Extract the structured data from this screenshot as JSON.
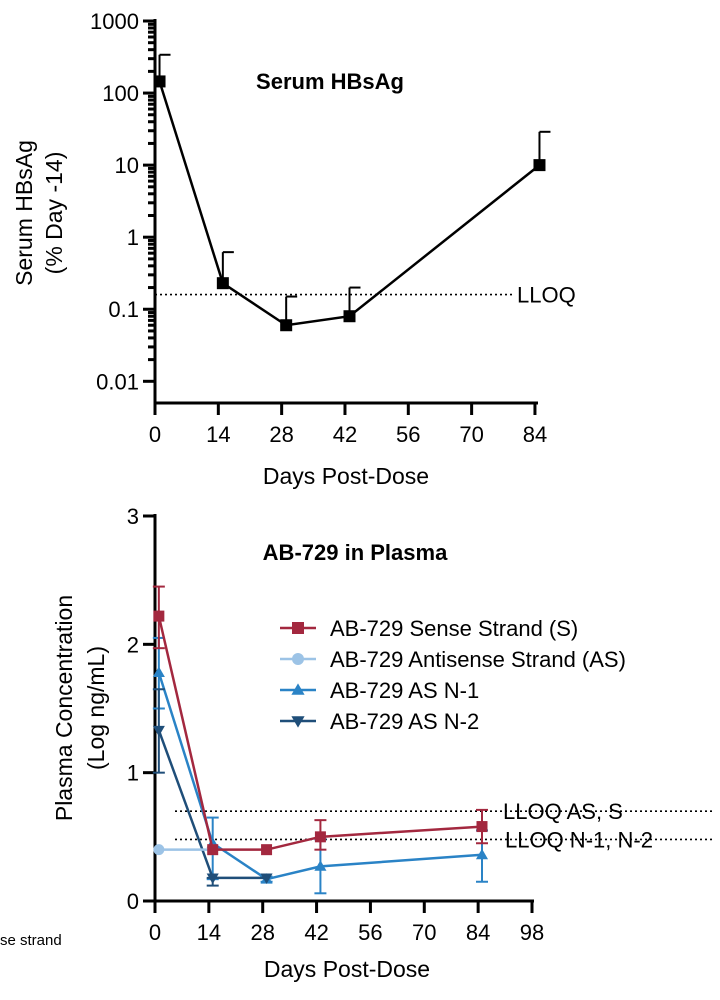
{
  "chart_data": [
    {
      "type": "line",
      "title": "Serum HBsAg",
      "xlabel": "Days Post-Dose",
      "ylabel_line1": "Serum HBsAg",
      "ylabel_line2": "(% Day -14)",
      "yscale": "log",
      "xlim": [
        0,
        86
      ],
      "ylim": [
        0.005,
        1000
      ],
      "xticks": [
        0,
        14,
        28,
        42,
        56,
        70,
        84
      ],
      "yticks": [
        0.01,
        0.1,
        1,
        10,
        100,
        1000
      ],
      "ytick_labels": [
        "0.01",
        "0.1",
        "1",
        "10",
        "100",
        "1000"
      ],
      "reference_lines": [
        {
          "label": "LLOQ",
          "y": 0.16
        }
      ],
      "series": [
        {
          "name": "Serum HBsAg",
          "color": "#000000",
          "marker": "square",
          "x": [
            1,
            15,
            29,
            43,
            85
          ],
          "y": [
            145,
            0.23,
            0.06,
            0.08,
            10
          ],
          "err_upper": [
            340,
            0.62,
            0.15,
            0.2,
            29
          ]
        }
      ]
    },
    {
      "type": "line",
      "title": "AB-729 in Plasma",
      "xlabel": "Days Post-Dose",
      "ylabel_line1": "Plasma Concentration",
      "ylabel_line2": "(Log ng/mL)",
      "xlim": [
        0,
        98
      ],
      "ylim": [
        0,
        3
      ],
      "xticks": [
        0,
        14,
        28,
        42,
        56,
        70,
        84,
        98
      ],
      "yticks": [
        0,
        1,
        2,
        3
      ],
      "reference_lines": [
        {
          "label": "LLOQ AS, S",
          "y": 0.7
        },
        {
          "label": "LLOQ N-1, N-2",
          "y": 0.48
        }
      ],
      "legend_position": "right",
      "series": [
        {
          "name": "AB-729 Sense Strand (S)",
          "color": "#a3283f",
          "marker": "square",
          "x": [
            1,
            15,
            29,
            43,
            85
          ],
          "y": [
            2.22,
            0.4,
            0.4,
            0.5,
            0.58
          ],
          "err_lo": [
            1.97,
            0.4,
            0.4,
            0.4,
            0.45
          ],
          "err_hi": [
            2.45,
            0.4,
            0.4,
            0.63,
            0.71
          ]
        },
        {
          "name": "AB-729 Antisense Strand (AS)",
          "color": "#9cc3e6",
          "marker": "circle",
          "x": [
            1,
            15
          ],
          "y": [
            0.4,
            0.4
          ]
        },
        {
          "name": "AB-729 AS N-1",
          "color": "#2a83c6",
          "marker": "triangle-up",
          "x": [
            1,
            15,
            29,
            43,
            85
          ],
          "y": [
            1.78,
            0.45,
            0.17,
            0.27,
            0.36
          ],
          "err_lo": [
            1.5,
            0.17,
            0.15,
            0.06,
            0.15
          ],
          "err_hi": [
            2.05,
            0.65,
            0.19,
            0.48,
            0.55
          ]
        },
        {
          "name": "AB-729 AS N-2",
          "color": "#1f4e79",
          "marker": "triangle-down",
          "x": [
            1,
            15,
            29
          ],
          "y": [
            1.33,
            0.18,
            0.18
          ],
          "err_lo": [
            1.0,
            0.12,
            0.18
          ],
          "err_hi": [
            1.65,
            0.18,
            0.18
          ]
        }
      ]
    }
  ],
  "cropped_text": "se strand"
}
